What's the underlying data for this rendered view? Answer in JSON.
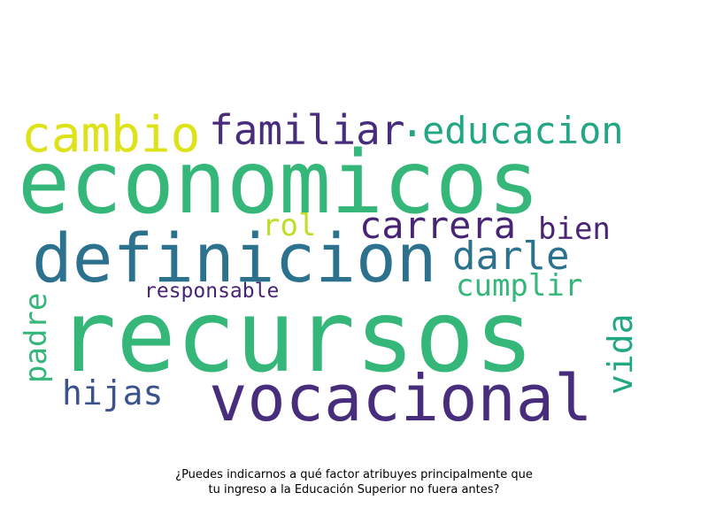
{
  "wordcloud": {
    "words": [
      {
        "key": "economicos",
        "text": "economicos",
        "color": "#35b779"
      },
      {
        "key": "recursos",
        "text": "recursos",
        "color": "#35b779"
      },
      {
        "key": "definicion",
        "text": "definicion",
        "color": "#2c728e"
      },
      {
        "key": "vocacional",
        "text": "vocacional",
        "color": "#472d7b"
      },
      {
        "key": "cambio",
        "text": "cambio",
        "color": "#dde318"
      },
      {
        "key": "familiar",
        "text": "familiar",
        "color": "#472d7b"
      },
      {
        "key": "educacion",
        "text": "educacion",
        "color": "#22a785"
      },
      {
        "key": "carrera",
        "text": "carrera",
        "color": "#482475"
      },
      {
        "key": "darle",
        "text": "darle",
        "color": "#2c728e"
      },
      {
        "key": "bien",
        "text": "bien",
        "color": "#482475"
      },
      {
        "key": "rol",
        "text": "rol",
        "color": "#bddf26"
      },
      {
        "key": "cumplir",
        "text": "cumplir",
        "color": "#35b779"
      },
      {
        "key": "responsable",
        "text": "responsable",
        "color": "#482475"
      },
      {
        "key": "hijas",
        "text": "hijas",
        "color": "#3b528b"
      },
      {
        "key": "padre",
        "text": "padre",
        "color": "#35b779"
      },
      {
        "key": "vida",
        "text": "vida",
        "color": "#22a785"
      }
    ],
    "dot": {
      "text": ".",
      "color": "#22a785"
    }
  },
  "caption": {
    "line1": "¿Puedes indicarnos a qué factor atribuyes principalmente que",
    "line2": "tu ingreso a la Educación Superior no fuera antes?"
  }
}
